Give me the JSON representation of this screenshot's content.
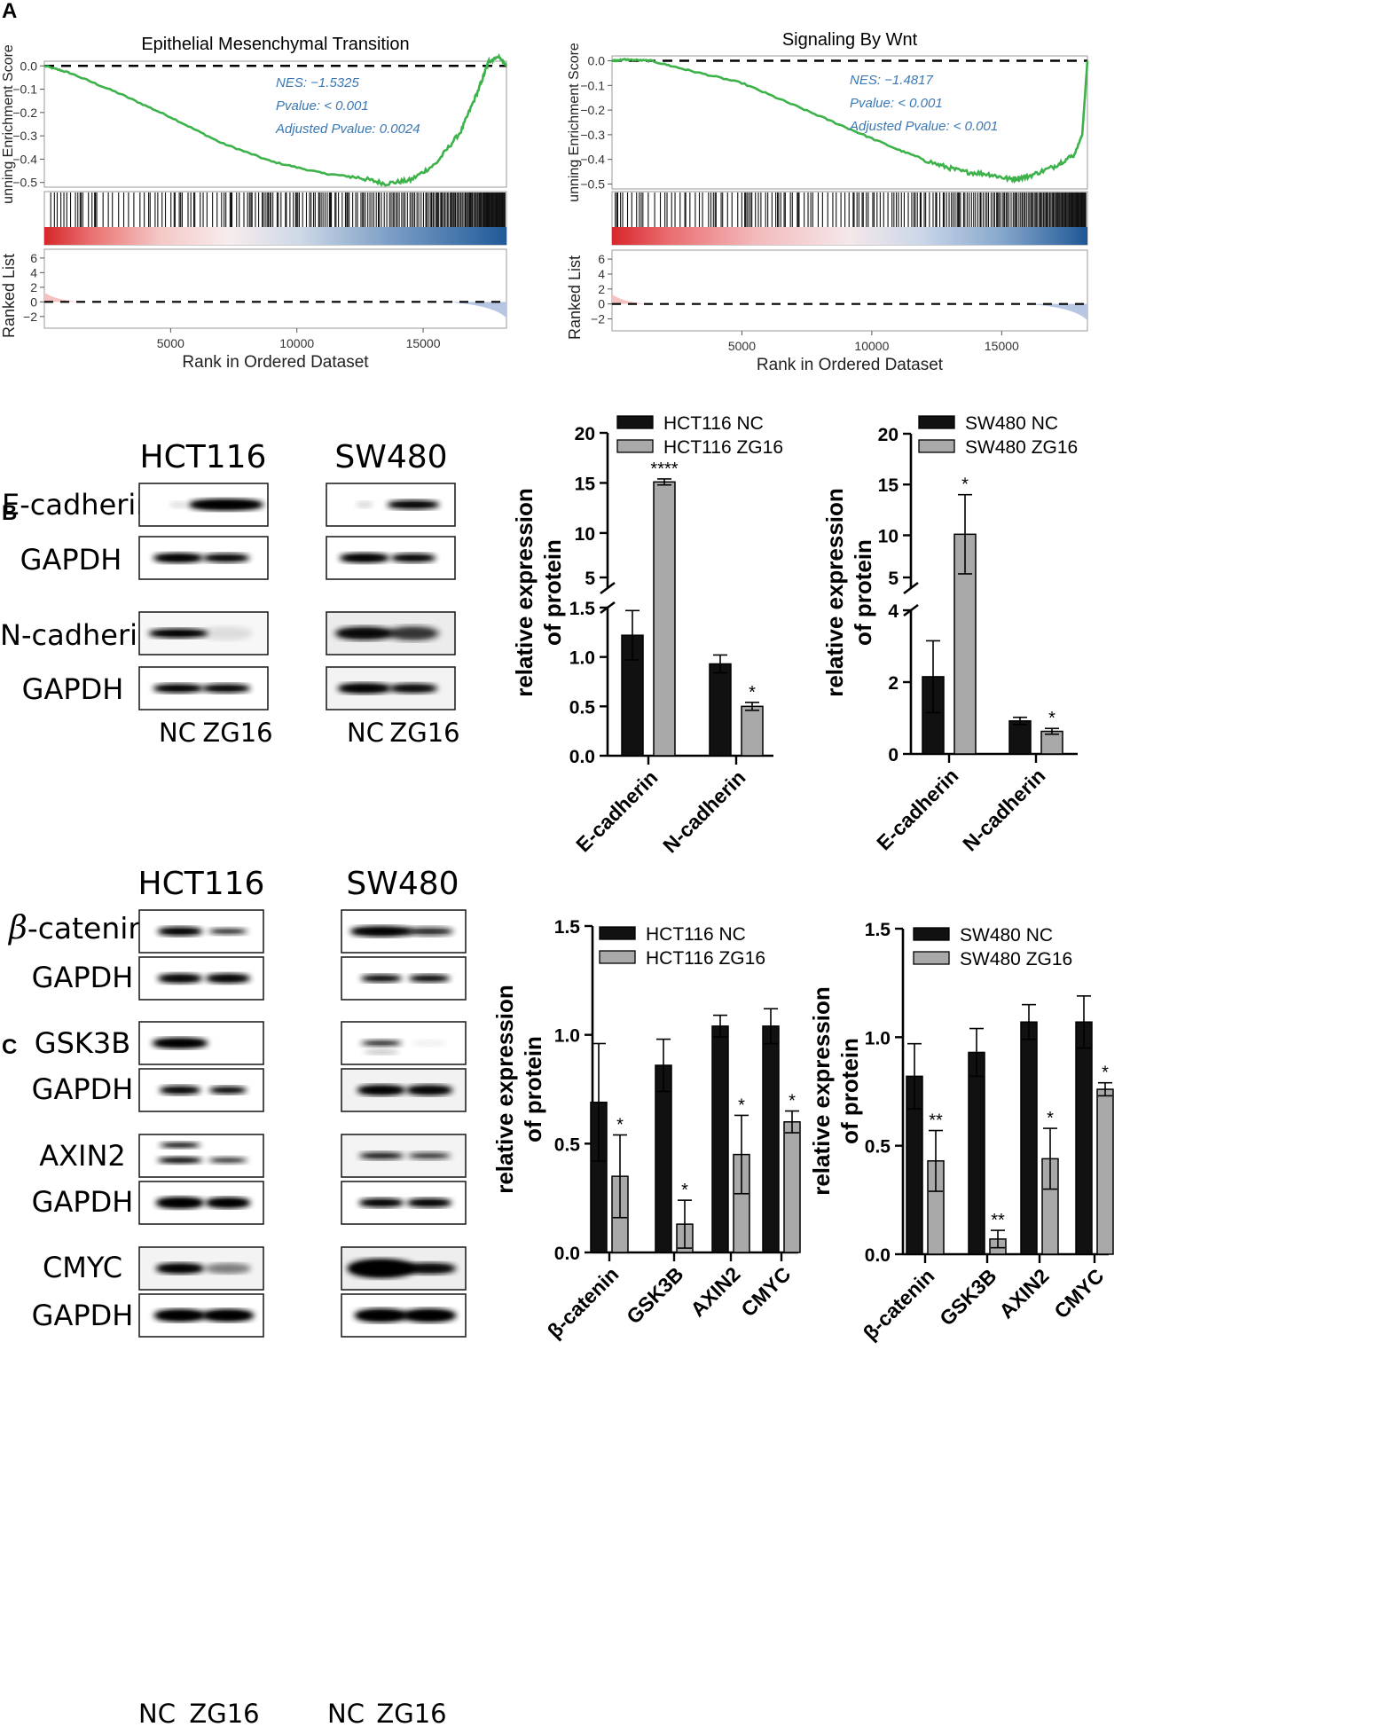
{
  "panels": {
    "a": "A",
    "b": "B",
    "c": "C"
  },
  "gsea": [
    {
      "title": "Epithelial Mesenchymal Transition",
      "ylabel_top": "unning Enrichment Score",
      "ylabel_bottom": "Ranked List",
      "xlabel": "Rank in Ordered Dataset",
      "es_ticks": [
        "0.0",
        "−0.1",
        "−0.2",
        "−0.3",
        "−0.4",
        "−0.5"
      ],
      "es_values": [
        0.0,
        -0.1,
        -0.2,
        -0.3,
        -0.4,
        -0.5
      ],
      "rank_ticks": [
        "6",
        "4",
        "2",
        "0",
        "−2"
      ],
      "rank_values": [
        6,
        4,
        2,
        0,
        -2
      ],
      "x_ticks": [
        "5000",
        "10000",
        "15000"
      ],
      "x_values": [
        5000,
        10000,
        15000
      ],
      "xlim": [
        0,
        18300
      ],
      "nes": "NES: −1.5325",
      "pvalue": "Pvalue: < 0.001",
      "adj_pvalue": "Adjusted Pvalue: 0.0024",
      "curve": [
        [
          0,
          0
        ],
        [
          1000,
          -0.03
        ],
        [
          3000,
          -0.12
        ],
        [
          5000,
          -0.22
        ],
        [
          7000,
          -0.33
        ],
        [
          9000,
          -0.41
        ],
        [
          11000,
          -0.46
        ],
        [
          12500,
          -0.48
        ],
        [
          13500,
          -0.505
        ],
        [
          14500,
          -0.49
        ],
        [
          15500,
          -0.42
        ],
        [
          16500,
          -0.28
        ],
        [
          17200,
          -0.1
        ],
        [
          17600,
          0.02
        ],
        [
          18000,
          0.04
        ],
        [
          18300,
          0.0
        ]
      ],
      "min_es": -0.505
    },
    {
      "title": "Signaling By Wnt",
      "ylabel_top": "unning Enrichment Score",
      "ylabel_bottom": "Ranked List",
      "xlabel": "Rank in Ordered Dataset",
      "es_ticks": [
        "0.0",
        "−0.1",
        "−0.2",
        "−0.3",
        "−0.4",
        "−0.5"
      ],
      "es_values": [
        0.0,
        -0.1,
        -0.2,
        -0.3,
        -0.4,
        -0.5
      ],
      "rank_ticks": [
        "6",
        "4",
        "2",
        "0",
        "−2"
      ],
      "rank_values": [
        6,
        4,
        2,
        0,
        -2
      ],
      "x_ticks": [
        "5000",
        "10000",
        "15000"
      ],
      "x_values": [
        5000,
        10000,
        15000
      ],
      "xlim": [
        0,
        18300
      ],
      "nes": "NES: −1.4817",
      "pvalue": "Pvalue: < 0.001",
      "adj_pvalue": "Adjusted Pvalue: < 0.001",
      "curve": [
        [
          0,
          0
        ],
        [
          500,
          0.005
        ],
        [
          1500,
          0.0
        ],
        [
          3000,
          -0.04
        ],
        [
          5000,
          -0.09
        ],
        [
          7000,
          -0.18
        ],
        [
          9000,
          -0.27
        ],
        [
          11000,
          -0.36
        ],
        [
          12500,
          -0.42
        ],
        [
          13500,
          -0.45
        ],
        [
          14500,
          -0.46
        ],
        [
          15300,
          -0.48
        ],
        [
          16000,
          -0.47
        ],
        [
          17000,
          -0.43
        ],
        [
          17800,
          -0.38
        ],
        [
          18100,
          -0.3
        ],
        [
          18300,
          0.0
        ]
      ],
      "min_es": -0.485
    }
  ],
  "blot_b": {
    "cell_lines": [
      "HCT116",
      "SW480"
    ],
    "proteins": [
      "E-cadherin",
      "GAPDH",
      "N-cadherin",
      "GAPDH"
    ],
    "lanes": [
      "NC",
      "ZG16"
    ]
  },
  "blot_c": {
    "cell_lines": [
      "HCT116",
      "SW480"
    ],
    "protein_prefix": "β",
    "proteins": [
      "-catenin",
      "GAPDH",
      "GSK3B",
      "GAPDH",
      "AXIN2",
      "GAPDH",
      "CMYC",
      "GAPDH"
    ],
    "lanes": [
      "NC",
      "ZG16"
    ]
  },
  "chart_data": [
    {
      "type": "bar",
      "ylabel": "relative expression of protein",
      "ylabel_lines": [
        "relative expression",
        "of protein"
      ],
      "categories": [
        "E-cadherin",
        "N-cadherin"
      ],
      "series": [
        {
          "name": "HCT116 NC",
          "values": [
            1.22,
            0.93
          ],
          "errors": [
            0.25,
            0.09
          ],
          "color": "#111111"
        },
        {
          "name": "HCT116 ZG16",
          "values": [
            15.1,
            0.5
          ],
          "errors": [
            0.3,
            0.04
          ],
          "color": "#a9a9a9"
        }
      ],
      "significance": [
        [
          "",
          ""
        ],
        [
          "****",
          "*"
        ]
      ],
      "axis_break": true,
      "lower_range": [
        0,
        1.5
      ],
      "upper_range": [
        4.5,
        20
      ],
      "y_ticks_lower": [
        "0.0",
        "0.5",
        "1.0",
        "1.5"
      ],
      "y_ticks_upper": [
        "5",
        "10",
        "15",
        "20"
      ]
    },
    {
      "type": "bar",
      "ylabel": "relative expression of protein",
      "ylabel_lines": [
        "relative expression",
        "of protein"
      ],
      "categories": [
        "E-cadherin",
        "N-cadherin"
      ],
      "series": [
        {
          "name": "SW480 NC",
          "values": [
            2.15,
            0.92
          ],
          "errors": [
            1.0,
            0.1
          ],
          "color": "#111111"
        },
        {
          "name": "SW480 ZG16",
          "values": [
            10.1,
            0.63
          ],
          "errors": [
            3.9,
            0.08
          ],
          "color": "#a9a9a9"
        }
      ],
      "significance": [
        [
          "",
          ""
        ],
        [
          "*",
          "*"
        ]
      ],
      "axis_break": true,
      "lower_range": [
        0,
        4
      ],
      "upper_range": [
        4.8,
        20
      ],
      "y_ticks_lower": [
        "0",
        "2",
        "4"
      ],
      "y_ticks_upper": [
        "5",
        "10",
        "15",
        "20"
      ]
    },
    {
      "type": "bar",
      "ylabel": "relative expression of protein",
      "ylabel_lines": [
        "relative expression",
        "of protein"
      ],
      "categories": [
        "β-catenin",
        "GSK3B",
        "AXIN2",
        "CMYC"
      ],
      "series": [
        {
          "name": "HCT116 NC",
          "values": [
            0.69,
            0.86,
            1.04,
            1.04
          ],
          "errors": [
            0.27,
            0.12,
            0.05,
            0.08
          ],
          "color": "#111111"
        },
        {
          "name": "HCT116 ZG16",
          "values": [
            0.35,
            0.13,
            0.45,
            0.6
          ],
          "errors": [
            0.19,
            0.11,
            0.18,
            0.05
          ],
          "color": "#a9a9a9"
        }
      ],
      "significance": [
        [
          "",
          "",
          "",
          ""
        ],
        [
          "*",
          "*",
          "*",
          "*"
        ]
      ],
      "ylim": [
        0,
        1.5
      ],
      "y_ticks": [
        "0.0",
        "0.5",
        "1.0",
        "1.5"
      ]
    },
    {
      "type": "bar",
      "ylabel": "relative expression of protein",
      "ylabel_lines": [
        "relative expression",
        "of protein"
      ],
      "categories": [
        "β-catenin",
        "GSK3B",
        "AXIN2",
        "CMYC"
      ],
      "series": [
        {
          "name": "SW480 NC",
          "values": [
            0.82,
            0.93,
            1.07,
            1.07
          ],
          "errors": [
            0.15,
            0.11,
            0.08,
            0.12
          ],
          "color": "#111111"
        },
        {
          "name": "SW480 ZG16",
          "values": [
            0.43,
            0.07,
            0.44,
            0.76
          ],
          "errors": [
            0.14,
            0.04,
            0.14,
            0.03
          ],
          "color": "#a9a9a9"
        }
      ],
      "significance": [
        [
          "",
          "",
          "",
          ""
        ],
        [
          "**",
          "**",
          "*",
          "*"
        ]
      ],
      "ylim": [
        0,
        1.5
      ],
      "y_ticks": [
        "0.0",
        "0.5",
        "1.0",
        "1.5"
      ]
    }
  ]
}
